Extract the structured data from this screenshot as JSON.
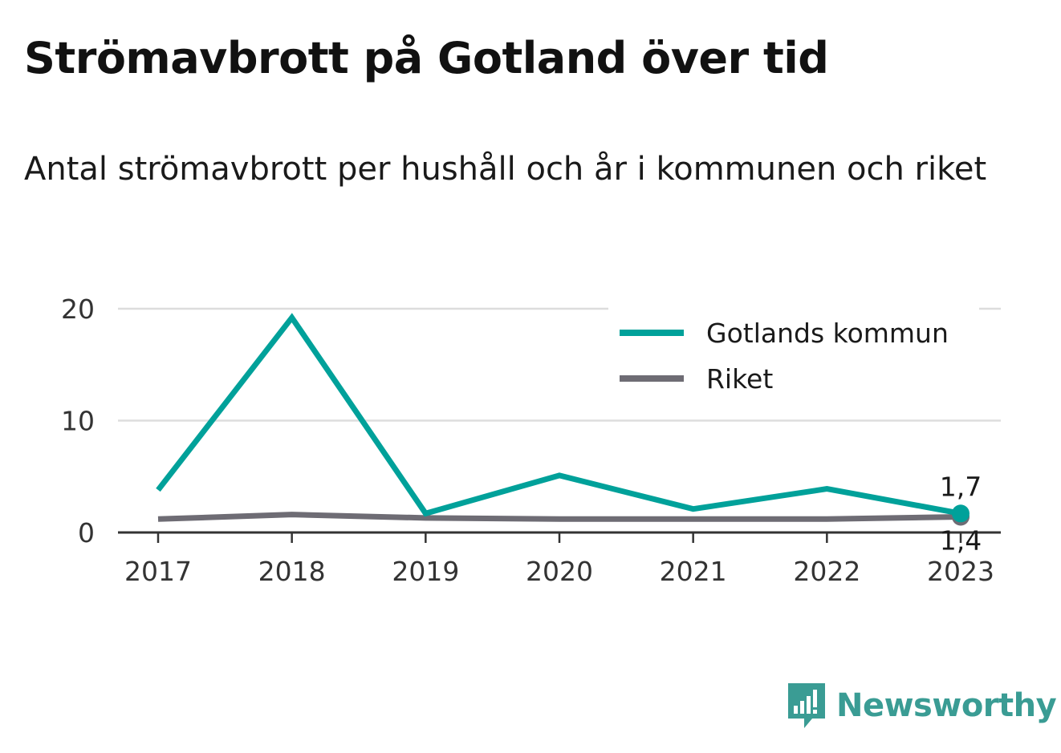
{
  "title": "Strömavbrott på Gotland över tid",
  "subtitle": "Antal strömavbrott per hushåll och år i kommunen och riket",
  "brand": {
    "name": "Newsworthy",
    "icon": "newsworthy-logo-icon",
    "color": "#3a9c94"
  },
  "colors": {
    "gotland": "#00a19a",
    "riket": "#6e6c74",
    "grid": "#dddddd",
    "axis": "#333333"
  },
  "chart_data": {
    "type": "line",
    "categories": [
      "2017",
      "2018",
      "2019",
      "2020",
      "2021",
      "2022",
      "2023"
    ],
    "ylim": [
      0,
      20
    ],
    "yticks": [
      0,
      10,
      20
    ],
    "grid": true,
    "legend_position": "top-right",
    "series": [
      {
        "name": "Gotlands kommun",
        "values": [
          3.8,
          19.2,
          1.7,
          5.1,
          2.1,
          3.9,
          1.7
        ],
        "end_label": "1,7"
      },
      {
        "name": "Riket",
        "values": [
          1.2,
          1.6,
          1.3,
          1.2,
          1.2,
          1.2,
          1.4
        ],
        "end_label": "1,4"
      }
    ]
  }
}
